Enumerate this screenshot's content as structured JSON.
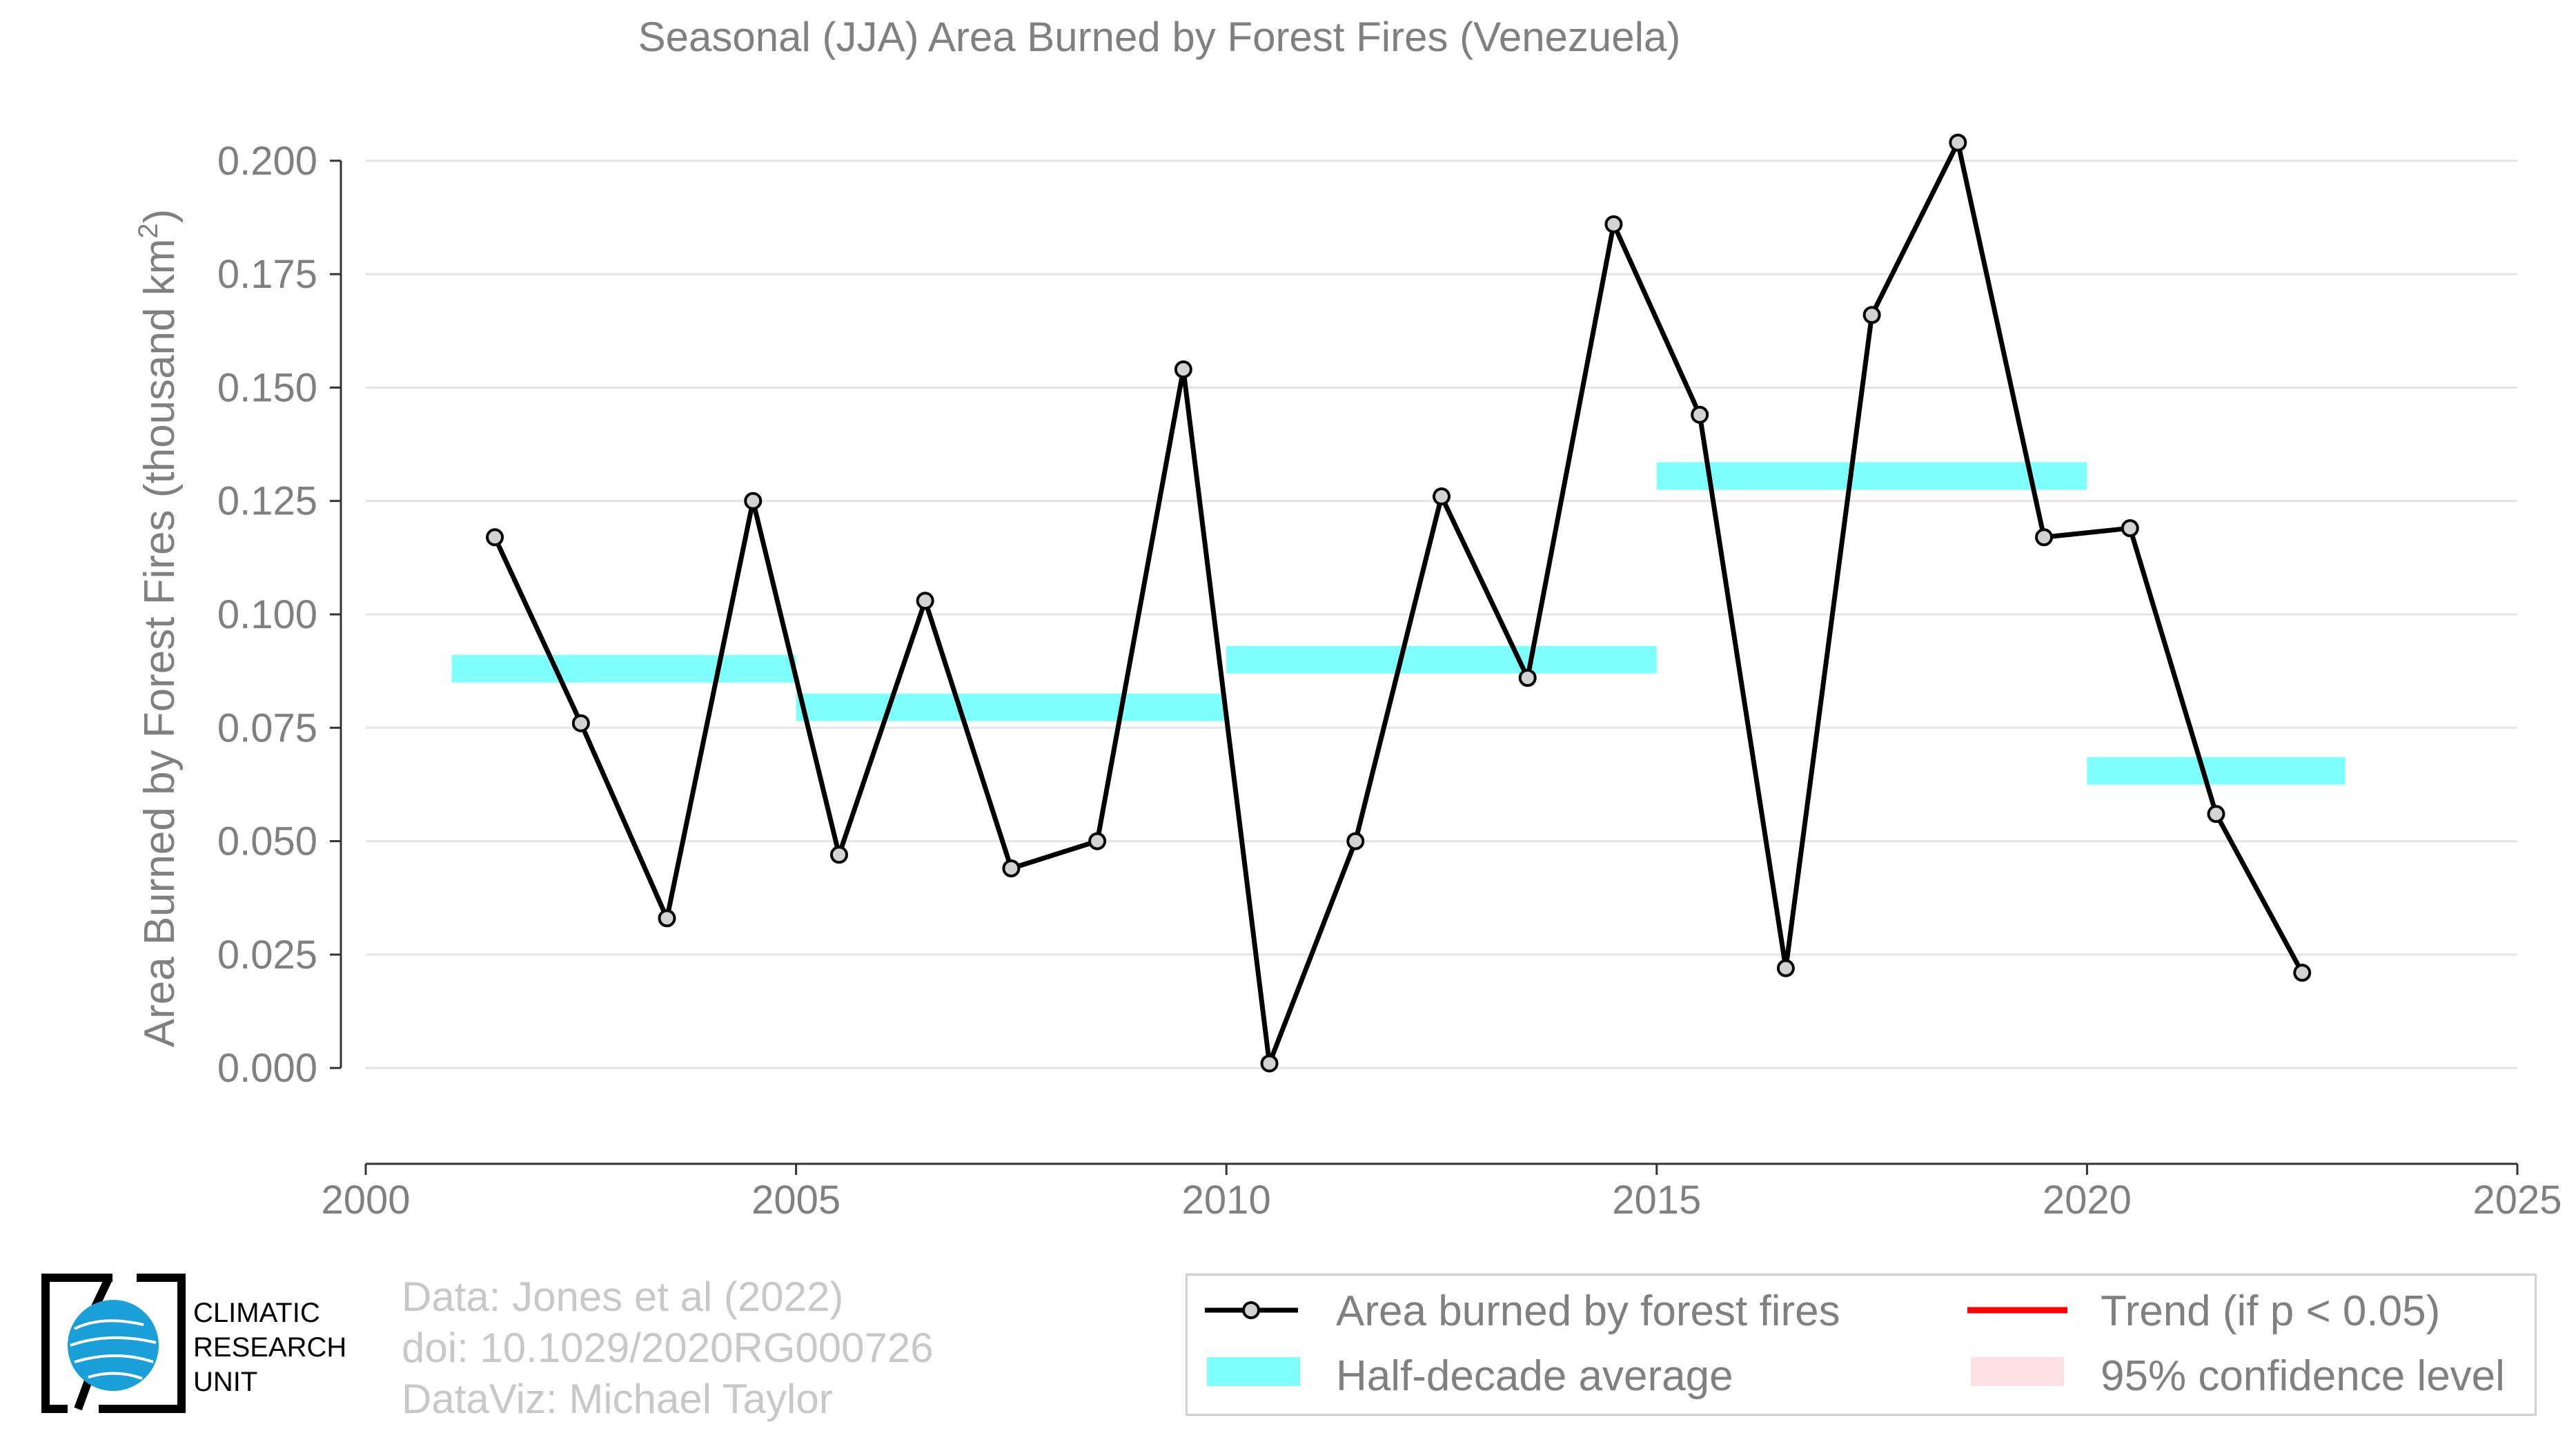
{
  "chart_data": {
    "type": "line",
    "title": "Seasonal (JJA) Area Burned by Forest Fires (Venezuela)",
    "xlabel": "",
    "ylabel": "Area Burned by Forest Fires (thousand km",
    "ylabel_superscript": "2",
    "ylabel_suffix": ")",
    "xlim": [
      2000,
      2025
    ],
    "ylim": [
      -0.005,
      0.205
    ],
    "x_ticks": [
      2000,
      2005,
      2010,
      2015,
      2020,
      2025
    ],
    "y_ticks": [
      0.0,
      0.025,
      0.05,
      0.075,
      0.1,
      0.125,
      0.15,
      0.175,
      0.2
    ],
    "y_tick_labels": [
      "0.000",
      "0.025",
      "0.050",
      "0.075",
      "0.100",
      "0.125",
      "0.150",
      "0.175",
      "0.200"
    ],
    "grid": true,
    "series": [
      {
        "name": "Area burned by forest fires",
        "color": "#000000",
        "marker_fill": "#d3d3d3",
        "x": [
          2001.5,
          2002.5,
          2003.5,
          2004.5,
          2005.5,
          2006.5,
          2007.5,
          2008.5,
          2009.5,
          2010.5,
          2011.5,
          2012.5,
          2013.5,
          2014.5,
          2015.5,
          2016.5,
          2017.5,
          2018.5,
          2019.5,
          2020.5,
          2021.5,
          2022.5
        ],
        "y": [
          0.117,
          0.076,
          0.033,
          0.125,
          0.047,
          0.103,
          0.044,
          0.05,
          0.154,
          0.001,
          0.05,
          0.126,
          0.086,
          0.186,
          0.144,
          0.022,
          0.166,
          0.204,
          0.117,
          0.119,
          0.056,
          0.021
        ]
      }
    ],
    "half_decade_average": {
      "name": "Half-decade average",
      "color": "#80ffff",
      "segments": [
        {
          "x_start": 2001,
          "x_end": 2005,
          "y": 0.088
        },
        {
          "x_start": 2005,
          "x_end": 2010,
          "y": 0.0795
        },
        {
          "x_start": 2010,
          "x_end": 2015,
          "y": 0.09
        },
        {
          "x_start": 2015,
          "x_end": 2020,
          "y": 0.1305
        },
        {
          "x_start": 2020,
          "x_end": 2023,
          "y": 0.0655
        }
      ]
    },
    "legend": {
      "placement": "bottom-right",
      "entries": [
        {
          "label": "Area burned by forest fires",
          "kind": "line-marker",
          "color": "#000000"
        },
        {
          "label": "Trend (if p < 0.05)",
          "kind": "line",
          "color": "#ff0000"
        },
        {
          "label": "Half-decade average",
          "kind": "band",
          "color": "#80ffff"
        },
        {
          "label": "95% confidence level",
          "kind": "band",
          "color": "#ffe0e0"
        }
      ]
    }
  },
  "credits": {
    "line1": "Data: Jones et al (2022)",
    "line2": "doi: 10.1029/2020RG000726",
    "line3": "DataViz: Michael Taylor"
  },
  "logo": {
    "line1": "CLIMATIC",
    "line2": "RESEARCH",
    "line3": "UNIT",
    "colors": {
      "globe": "#1a9fd8",
      "frame": "#000000"
    }
  }
}
